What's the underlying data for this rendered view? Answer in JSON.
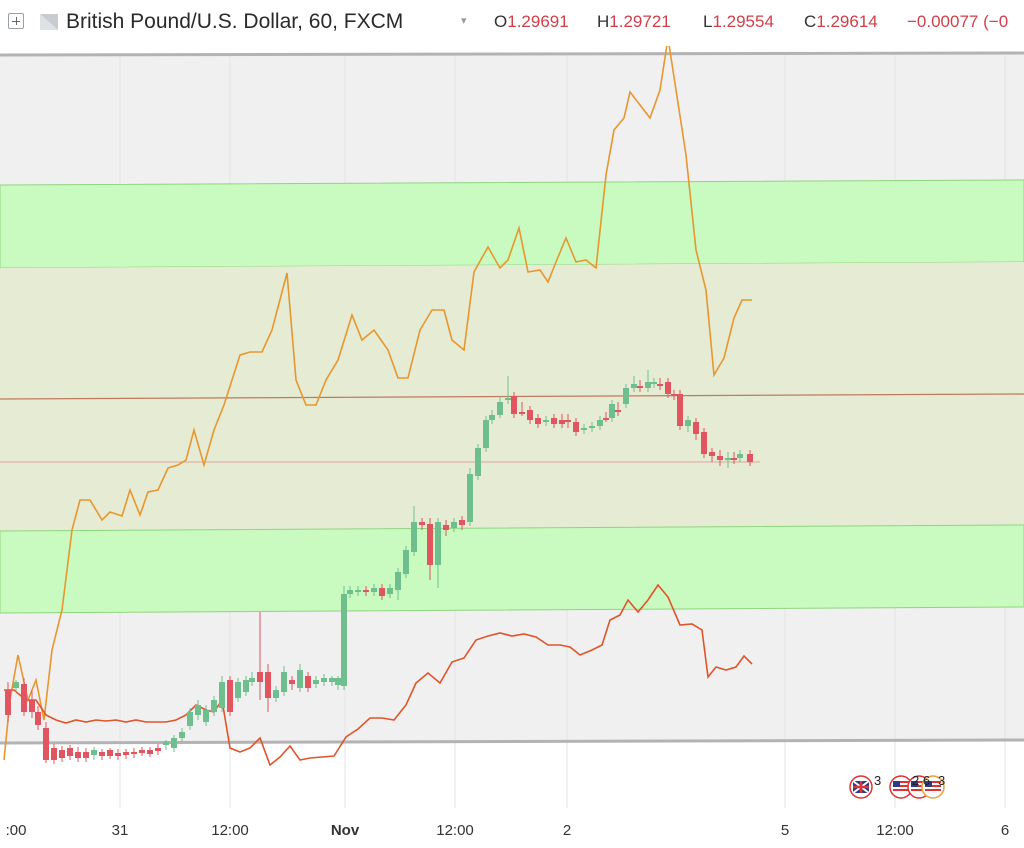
{
  "header": {
    "title": "British Pound/U.S. Dollar, 60, FXCM",
    "open_label": "O",
    "open_value": "1.29691",
    "high_label": "H",
    "high_value": "1.29721",
    "low_label": "L",
    "low_value": "1.29554",
    "close_label": "C",
    "close_value": "1.29614",
    "change_value": "−0.00077 (−0",
    "caret": "▾"
  },
  "xaxis": {
    "ticks": [
      ":00",
      "31",
      "12:00",
      "Nov",
      "12:00",
      "2",
      "5",
      "12:00",
      "6"
    ]
  },
  "events": {
    "gb_count": "3",
    "us_counts": "2 6",
    "us_trail": "3"
  },
  "colors": {
    "up_candle": "#6fbf8e",
    "down_candle": "#e0555f",
    "upper_line": "#e8962e",
    "lower_line": "#e0542a",
    "green_band": "#c9fbc0",
    "mid_band": "#e5ecd3",
    "grey_zone": "#f0f0f0",
    "close_value": "#d0404a"
  }
}
